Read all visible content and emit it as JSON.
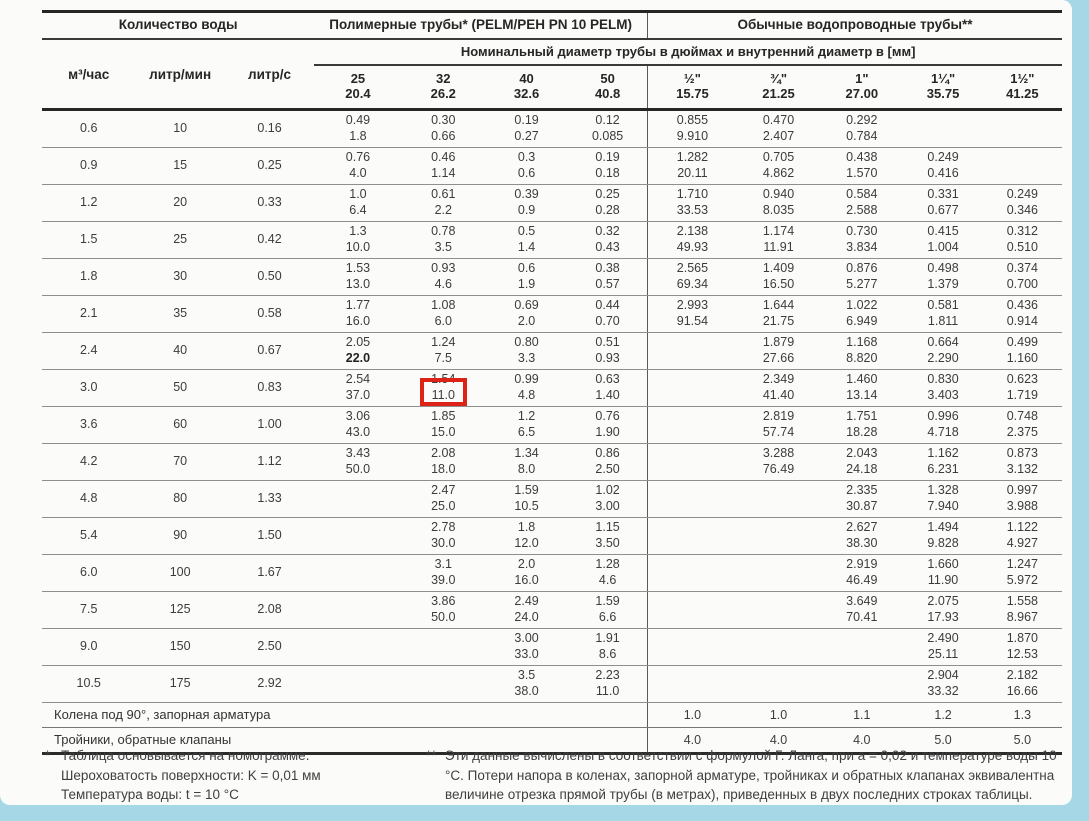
{
  "accent_colors": {
    "page_frame_blue": "#a6d7e6",
    "highlight_red": "#dd2318"
  },
  "table": {
    "group_headers": [
      "Количество воды",
      "Полимерные трубы* (PELM/PEH PN 10 PELM)",
      "Обычные водопроводные трубы**"
    ],
    "diameter_header": "Номинальный диаметр трубы в дюймах и внутренний диаметр в [мм]",
    "flow_columns": [
      "м³/час",
      "литр/мин",
      "литр/с"
    ],
    "pipe_columns": [
      {
        "size": "25",
        "inner": "20.4"
      },
      {
        "size": "32",
        "inner": "26.2"
      },
      {
        "size": "40",
        "inner": "32.6"
      },
      {
        "size": "50",
        "inner": "40.8"
      },
      {
        "size": "½\"",
        "inner": "15.75"
      },
      {
        "size": "¾\"",
        "inner": "21.25"
      },
      {
        "size": "1\"",
        "inner": "27.00"
      },
      {
        "size": "1¼\"",
        "inner": "35.75"
      },
      {
        "size": "1½\"",
        "inner": "41.25"
      }
    ],
    "rows": [
      {
        "flow": [
          "0.6",
          "10",
          "0.16"
        ],
        "cells": [
          [
            "0.49",
            "1.8"
          ],
          [
            "0.30",
            "0.66"
          ],
          [
            "0.19",
            "0.27"
          ],
          [
            "0.12",
            "0.085"
          ],
          [
            "0.855",
            "9.910"
          ],
          [
            "0.470",
            "2.407"
          ],
          [
            "0.292",
            "0.784"
          ],
          null,
          null
        ]
      },
      {
        "flow": [
          "0.9",
          "15",
          "0.25"
        ],
        "cells": [
          [
            "0.76",
            "4.0"
          ],
          [
            "0.46",
            "1.14"
          ],
          [
            "0.3",
            "0.6"
          ],
          [
            "0.19",
            "0.18"
          ],
          [
            "1.282",
            "20.11"
          ],
          [
            "0.705",
            "4.862"
          ],
          [
            "0.438",
            "1.570"
          ],
          [
            "0.249",
            "0.416"
          ],
          null
        ]
      },
      {
        "flow": [
          "1.2",
          "20",
          "0.33"
        ],
        "cells": [
          [
            "1.0",
            "6.4"
          ],
          [
            "0.61",
            "2.2"
          ],
          [
            "0.39",
            "0.9"
          ],
          [
            "0.25",
            "0.28"
          ],
          [
            "1.710",
            "33.53"
          ],
          [
            "0.940",
            "8.035"
          ],
          [
            "0.584",
            "2.588"
          ],
          [
            "0.331",
            "0.677"
          ],
          [
            "0.249",
            "0.346"
          ]
        ]
      },
      {
        "flow": [
          "1.5",
          "25",
          "0.42"
        ],
        "cells": [
          [
            "1.3",
            "10.0"
          ],
          [
            "0.78",
            "3.5"
          ],
          [
            "0.5",
            "1.4"
          ],
          [
            "0.32",
            "0.43"
          ],
          [
            "2.138",
            "49.93"
          ],
          [
            "1.174",
            "11.91"
          ],
          [
            "0.730",
            "3.834"
          ],
          [
            "0.415",
            "1.004"
          ],
          [
            "0.312",
            "0.510"
          ]
        ]
      },
      {
        "flow": [
          "1.8",
          "30",
          "0.50"
        ],
        "cells": [
          [
            "1.53",
            "13.0"
          ],
          [
            "0.93",
            "4.6"
          ],
          [
            "0.6",
            "1.9"
          ],
          [
            "0.38",
            "0.57"
          ],
          [
            "2.565",
            "69.34"
          ],
          [
            "1.409",
            "16.50"
          ],
          [
            "0.876",
            "5.277"
          ],
          [
            "0.498",
            "1.379"
          ],
          [
            "0.374",
            "0.700"
          ]
        ]
      },
      {
        "flow": [
          "2.1",
          "35",
          "0.58"
        ],
        "cells": [
          [
            "1.77",
            "16.0"
          ],
          [
            "1.08",
            "6.0"
          ],
          [
            "0.69",
            "2.0"
          ],
          [
            "0.44",
            "0.70"
          ],
          [
            "2.993",
            "91.54"
          ],
          [
            "1.644",
            "21.75"
          ],
          [
            "1.022",
            "6.949"
          ],
          [
            "0.581",
            "1.811"
          ],
          [
            "0.436",
            "0.914"
          ]
        ]
      },
      {
        "flow": [
          "2.4",
          "40",
          "0.67"
        ],
        "cells": [
          [
            "2.05",
            "22.0"
          ],
          [
            "1.24",
            "7.5"
          ],
          [
            "0.80",
            "3.3"
          ],
          [
            "0.51",
            "0.93"
          ],
          null,
          [
            "1.879",
            "27.66"
          ],
          [
            "1.168",
            "8.820"
          ],
          [
            "0.664",
            "2.290"
          ],
          [
            "0.499",
            "1.160"
          ]
        ]
      },
      {
        "flow": [
          "3.0",
          "50",
          "0.83"
        ],
        "cells": [
          [
            "2.54",
            "37.0"
          ],
          [
            "1.54",
            "11.0"
          ],
          [
            "0.99",
            "4.8"
          ],
          [
            "0.63",
            "1.40"
          ],
          null,
          [
            "2.349",
            "41.40"
          ],
          [
            "1.460",
            "13.14"
          ],
          [
            "0.830",
            "3.403"
          ],
          [
            "0.623",
            "1.719"
          ]
        ]
      },
      {
        "flow": [
          "3.6",
          "60",
          "1.00"
        ],
        "cells": [
          [
            "3.06",
            "43.0"
          ],
          [
            "1.85",
            "15.0"
          ],
          [
            "1.2",
            "6.5"
          ],
          [
            "0.76",
            "1.90"
          ],
          null,
          [
            "2.819",
            "57.74"
          ],
          [
            "1.751",
            "18.28"
          ],
          [
            "0.996",
            "4.718"
          ],
          [
            "0.748",
            "2.375"
          ]
        ]
      },
      {
        "flow": [
          "4.2",
          "70",
          "1.12"
        ],
        "cells": [
          [
            "3.43",
            "50.0"
          ],
          [
            "2.08",
            "18.0"
          ],
          [
            "1.34",
            "8.0"
          ],
          [
            "0.86",
            "2.50"
          ],
          null,
          [
            "3.288",
            "76.49"
          ],
          [
            "2.043",
            "24.18"
          ],
          [
            "1.162",
            "6.231"
          ],
          [
            "0.873",
            "3.132"
          ]
        ]
      },
      {
        "flow": [
          "4.8",
          "80",
          "1.33"
        ],
        "cells": [
          null,
          [
            "2.47",
            "25.0"
          ],
          [
            "1.59",
            "10.5"
          ],
          [
            "1.02",
            "3.00"
          ],
          null,
          null,
          [
            "2.335",
            "30.87"
          ],
          [
            "1.328",
            "7.940"
          ],
          [
            "0.997",
            "3.988"
          ]
        ]
      },
      {
        "flow": [
          "5.4",
          "90",
          "1.50"
        ],
        "cells": [
          null,
          [
            "2.78",
            "30.0"
          ],
          [
            "1.8",
            "12.0"
          ],
          [
            "1.15",
            "3.50"
          ],
          null,
          null,
          [
            "2.627",
            "38.30"
          ],
          [
            "1.494",
            "9.828"
          ],
          [
            "1.122",
            "4.927"
          ]
        ]
      },
      {
        "flow": [
          "6.0",
          "100",
          "1.67"
        ],
        "cells": [
          null,
          [
            "3.1",
            "39.0"
          ],
          [
            "2.0",
            "16.0"
          ],
          [
            "1.28",
            "4.6"
          ],
          null,
          null,
          [
            "2.919",
            "46.49"
          ],
          [
            "1.660",
            "11.90"
          ],
          [
            "1.247",
            "5.972"
          ]
        ]
      },
      {
        "flow": [
          "7.5",
          "125",
          "2.08"
        ],
        "cells": [
          null,
          [
            "3.86",
            "50.0"
          ],
          [
            "2.49",
            "24.0"
          ],
          [
            "1.59",
            "6.6"
          ],
          null,
          null,
          [
            "3.649",
            "70.41"
          ],
          [
            "2.075",
            "17.93"
          ],
          [
            "1.558",
            "8.967"
          ]
        ]
      },
      {
        "flow": [
          "9.0",
          "150",
          "2.50"
        ],
        "cells": [
          null,
          null,
          [
            "3.00",
            "33.0"
          ],
          [
            "1.91",
            "8.6"
          ],
          null,
          null,
          null,
          [
            "2.490",
            "25.11"
          ],
          [
            "1.870",
            "12.53"
          ]
        ]
      },
      {
        "flow": [
          "10.5",
          "175",
          "2.92"
        ],
        "cells": [
          null,
          null,
          [
            "3.5",
            "38.0"
          ],
          [
            "2.23",
            "11.0"
          ],
          null,
          null,
          null,
          [
            "2.904",
            "33.32"
          ],
          [
            "2.182",
            "16.66"
          ]
        ]
      }
    ],
    "bold": {
      "row_index": 6,
      "flow_index": 0,
      "cell_index": 0,
      "cell_part": "bottom"
    },
    "highlight": {
      "row_index": 7,
      "cell_index": 1,
      "part": "bottom"
    },
    "footer_rows": [
      {
        "label": "Колена под 90°, запорная арматура",
        "values": [
          "1.0",
          "1.0",
          "1.1",
          "1.2",
          "1.3"
        ]
      },
      {
        "label": "Тройники, обратные клапаны",
        "values": [
          "4.0",
          "4.0",
          "4.0",
          "5.0",
          "5.0"
        ]
      }
    ]
  },
  "footnotes": {
    "left": {
      "marker": "*",
      "lines": [
        "Таблица основывается на номограмме.",
        "Шероховатость поверхности: K = 0,01 мм",
        "Температура воды: t = 10 °C"
      ]
    },
    "right": {
      "marker": "**",
      "text": "Эти данные вычислены в соответствии с формулой Г. Ланга, при a = 0,02 и температуре воды 10 °C. Потери напора в коленах, запорной арматуре, тройниках и обратных клапанах эквивалентна величине отрезка прямой трубы (в метрах), приведенных в двух последних строках таблицы."
    }
  }
}
